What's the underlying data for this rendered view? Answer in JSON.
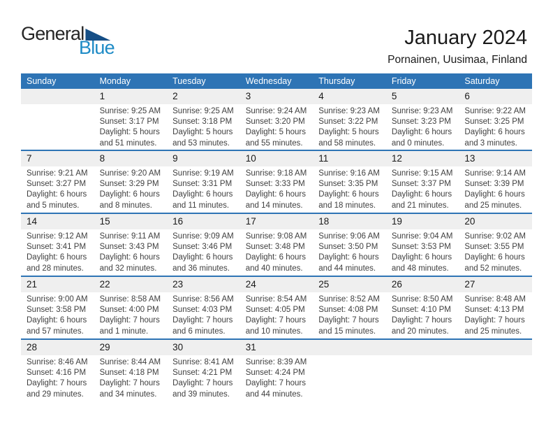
{
  "logo": {
    "general": "General",
    "blue": "Blue"
  },
  "header": {
    "title": "January 2024",
    "subtitle": "Pornainen, Uusimaa, Finland"
  },
  "colors": {
    "header_bg": "#2E74B5",
    "divider": "#2E74B5",
    "band_bg": "#EFEFEF",
    "header_text": "#FFFFFF",
    "content_text": "#3F3F3F",
    "day_num_text": "#1A1A1A",
    "logo_blue": "#1E8BC6",
    "logo_triangle": "#164F86"
  },
  "calendar": {
    "weekday_headers": [
      "Sunday",
      "Monday",
      "Tuesday",
      "Wednesday",
      "Thursday",
      "Friday",
      "Saturday"
    ],
    "weeks": [
      [
        null,
        {
          "day": "1",
          "lines": [
            "Sunrise: 9:25 AM",
            "Sunset: 3:17 PM",
            "Daylight: 5 hours",
            "and 51 minutes."
          ]
        },
        {
          "day": "2",
          "lines": [
            "Sunrise: 9:25 AM",
            "Sunset: 3:18 PM",
            "Daylight: 5 hours",
            "and 53 minutes."
          ]
        },
        {
          "day": "3",
          "lines": [
            "Sunrise: 9:24 AM",
            "Sunset: 3:20 PM",
            "Daylight: 5 hours",
            "and 55 minutes."
          ]
        },
        {
          "day": "4",
          "lines": [
            "Sunrise: 9:23 AM",
            "Sunset: 3:22 PM",
            "Daylight: 5 hours",
            "and 58 minutes."
          ]
        },
        {
          "day": "5",
          "lines": [
            "Sunrise: 9:23 AM",
            "Sunset: 3:23 PM",
            "Daylight: 6 hours",
            "and 0 minutes."
          ]
        },
        {
          "day": "6",
          "lines": [
            "Sunrise: 9:22 AM",
            "Sunset: 3:25 PM",
            "Daylight: 6 hours",
            "and 3 minutes."
          ]
        }
      ],
      [
        {
          "day": "7",
          "lines": [
            "Sunrise: 9:21 AM",
            "Sunset: 3:27 PM",
            "Daylight: 6 hours",
            "and 5 minutes."
          ]
        },
        {
          "day": "8",
          "lines": [
            "Sunrise: 9:20 AM",
            "Sunset: 3:29 PM",
            "Daylight: 6 hours",
            "and 8 minutes."
          ]
        },
        {
          "day": "9",
          "lines": [
            "Sunrise: 9:19 AM",
            "Sunset: 3:31 PM",
            "Daylight: 6 hours",
            "and 11 minutes."
          ]
        },
        {
          "day": "10",
          "lines": [
            "Sunrise: 9:18 AM",
            "Sunset: 3:33 PM",
            "Daylight: 6 hours",
            "and 14 minutes."
          ]
        },
        {
          "day": "11",
          "lines": [
            "Sunrise: 9:16 AM",
            "Sunset: 3:35 PM",
            "Daylight: 6 hours",
            "and 18 minutes."
          ]
        },
        {
          "day": "12",
          "lines": [
            "Sunrise: 9:15 AM",
            "Sunset: 3:37 PM",
            "Daylight: 6 hours",
            "and 21 minutes."
          ]
        },
        {
          "day": "13",
          "lines": [
            "Sunrise: 9:14 AM",
            "Sunset: 3:39 PM",
            "Daylight: 6 hours",
            "and 25 minutes."
          ]
        }
      ],
      [
        {
          "day": "14",
          "lines": [
            "Sunrise: 9:12 AM",
            "Sunset: 3:41 PM",
            "Daylight: 6 hours",
            "and 28 minutes."
          ]
        },
        {
          "day": "15",
          "lines": [
            "Sunrise: 9:11 AM",
            "Sunset: 3:43 PM",
            "Daylight: 6 hours",
            "and 32 minutes."
          ]
        },
        {
          "day": "16",
          "lines": [
            "Sunrise: 9:09 AM",
            "Sunset: 3:46 PM",
            "Daylight: 6 hours",
            "and 36 minutes."
          ]
        },
        {
          "day": "17",
          "lines": [
            "Sunrise: 9:08 AM",
            "Sunset: 3:48 PM",
            "Daylight: 6 hours",
            "and 40 minutes."
          ]
        },
        {
          "day": "18",
          "lines": [
            "Sunrise: 9:06 AM",
            "Sunset: 3:50 PM",
            "Daylight: 6 hours",
            "and 44 minutes."
          ]
        },
        {
          "day": "19",
          "lines": [
            "Sunrise: 9:04 AM",
            "Sunset: 3:53 PM",
            "Daylight: 6 hours",
            "and 48 minutes."
          ]
        },
        {
          "day": "20",
          "lines": [
            "Sunrise: 9:02 AM",
            "Sunset: 3:55 PM",
            "Daylight: 6 hours",
            "and 52 minutes."
          ]
        }
      ],
      [
        {
          "day": "21",
          "lines": [
            "Sunrise: 9:00 AM",
            "Sunset: 3:58 PM",
            "Daylight: 6 hours",
            "and 57 minutes."
          ]
        },
        {
          "day": "22",
          "lines": [
            "Sunrise: 8:58 AM",
            "Sunset: 4:00 PM",
            "Daylight: 7 hours",
            "and 1 minute."
          ]
        },
        {
          "day": "23",
          "lines": [
            "Sunrise: 8:56 AM",
            "Sunset: 4:03 PM",
            "Daylight: 7 hours",
            "and 6 minutes."
          ]
        },
        {
          "day": "24",
          "lines": [
            "Sunrise: 8:54 AM",
            "Sunset: 4:05 PM",
            "Daylight: 7 hours",
            "and 10 minutes."
          ]
        },
        {
          "day": "25",
          "lines": [
            "Sunrise: 8:52 AM",
            "Sunset: 4:08 PM",
            "Daylight: 7 hours",
            "and 15 minutes."
          ]
        },
        {
          "day": "26",
          "lines": [
            "Sunrise: 8:50 AM",
            "Sunset: 4:10 PM",
            "Daylight: 7 hours",
            "and 20 minutes."
          ]
        },
        {
          "day": "27",
          "lines": [
            "Sunrise: 8:48 AM",
            "Sunset: 4:13 PM",
            "Daylight: 7 hours",
            "and 25 minutes."
          ]
        }
      ],
      [
        {
          "day": "28",
          "lines": [
            "Sunrise: 8:46 AM",
            "Sunset: 4:16 PM",
            "Daylight: 7 hours",
            "and 29 minutes."
          ]
        },
        {
          "day": "29",
          "lines": [
            "Sunrise: 8:44 AM",
            "Sunset: 4:18 PM",
            "Daylight: 7 hours",
            "and 34 minutes."
          ]
        },
        {
          "day": "30",
          "lines": [
            "Sunrise: 8:41 AM",
            "Sunset: 4:21 PM",
            "Daylight: 7 hours",
            "and 39 minutes."
          ]
        },
        {
          "day": "31",
          "lines": [
            "Sunrise: 8:39 AM",
            "Sunset: 4:24 PM",
            "Daylight: 7 hours",
            "and 44 minutes."
          ]
        },
        null,
        null,
        null
      ]
    ]
  }
}
